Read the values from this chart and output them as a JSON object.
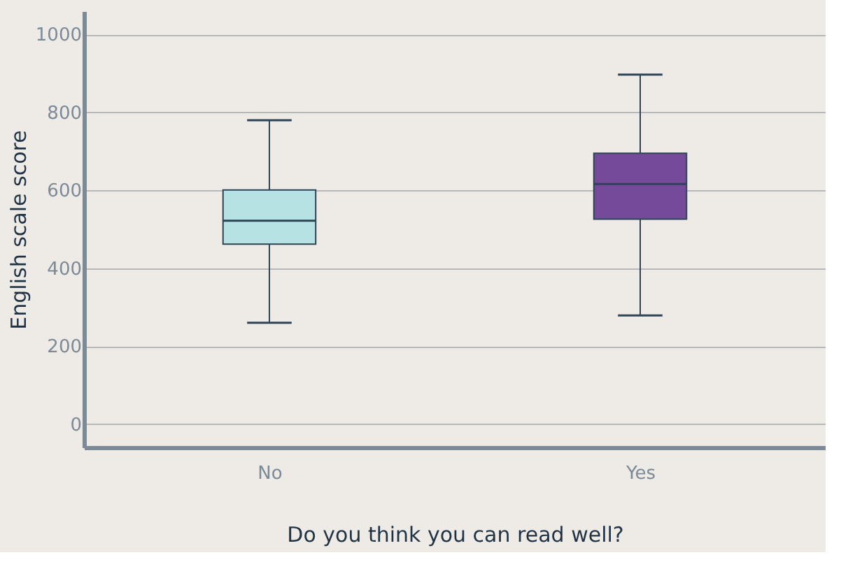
{
  "chart_data": {
    "type": "box",
    "xlabel": "Do you think you can read well?",
    "ylabel": "English scale score",
    "categories": [
      "No",
      "Yes"
    ],
    "boxes": [
      {
        "low": 260,
        "q1": 462,
        "median": 522,
        "q3": 601,
        "high": 780
      },
      {
        "low": 279,
        "q1": 526,
        "median": 616,
        "q3": 695,
        "high": 897
      }
    ],
    "colors": [
      "#b6e2e3",
      "#764a9b"
    ],
    "ylim": [
      -60,
      1060
    ],
    "yticks": [
      0,
      200,
      400,
      600,
      800,
      1000
    ],
    "grid": "y"
  }
}
